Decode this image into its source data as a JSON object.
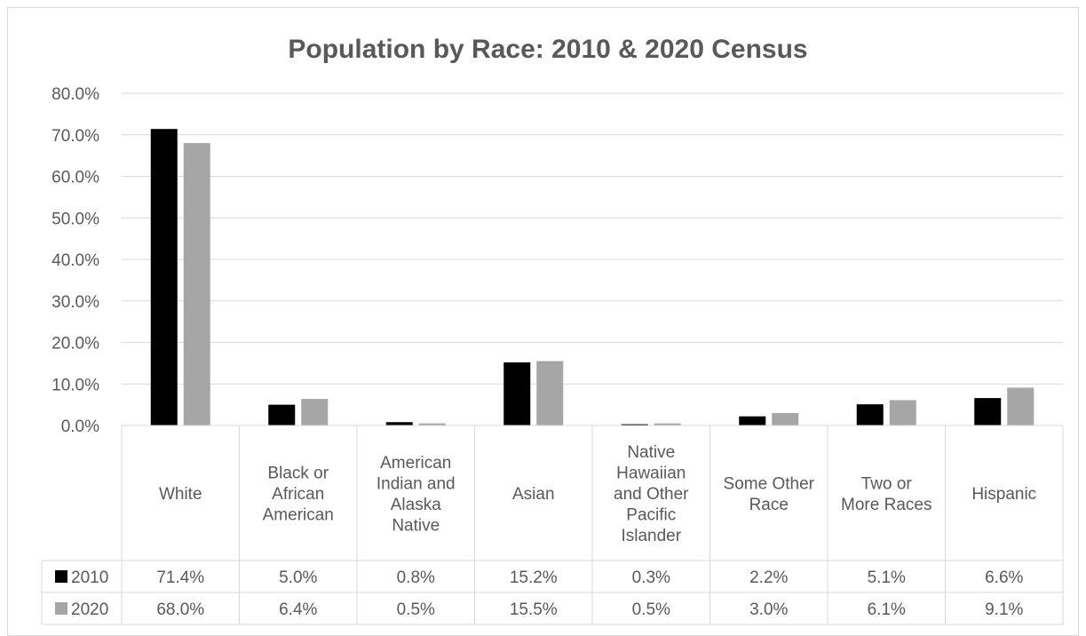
{
  "chart_data": {
    "type": "bar",
    "title": "Population by Race: 2010 & 2020 Census",
    "categories": [
      "White",
      "Black or African American",
      "American Indian and Alaska Native",
      "Asian",
      "Native Hawaiian and Other Pacific Islander",
      "Some Other Race",
      "Two or More Races",
      "Hispanic"
    ],
    "category_label_lines": [
      [
        "White"
      ],
      [
        "Black or",
        "African",
        "American"
      ],
      [
        "American",
        "Indian and",
        "Alaska",
        "Native"
      ],
      [
        "Asian"
      ],
      [
        "Native",
        "Hawaiian",
        "and Other",
        "Pacific",
        "Islander"
      ],
      [
        "Some Other",
        "Race"
      ],
      [
        "Two or",
        "More Races"
      ],
      [
        "Hispanic"
      ]
    ],
    "series": [
      {
        "name": "2010",
        "color": "#000000",
        "values": [
          71.4,
          5.0,
          0.8,
          15.2,
          0.3,
          2.2,
          5.1,
          6.6
        ],
        "value_labels": [
          "71.4%",
          "5.0%",
          "0.8%",
          "15.2%",
          "0.3%",
          "2.2%",
          "5.1%",
          "6.6%"
        ]
      },
      {
        "name": "2020",
        "color": "#a6a6a6",
        "values": [
          68.0,
          6.4,
          0.5,
          15.5,
          0.5,
          3.0,
          6.1,
          9.1
        ],
        "value_labels": [
          "68.0%",
          "6.4%",
          "0.5%",
          "15.5%",
          "0.5%",
          "3.0%",
          "6.1%",
          "9.1%"
        ]
      }
    ],
    "ylim": [
      0,
      80
    ],
    "yticks": [
      "0.0%",
      "10.0%",
      "20.0%",
      "30.0%",
      "40.0%",
      "50.0%",
      "60.0%",
      "70.0%",
      "80.0%"
    ],
    "grid": true,
    "legend": "data-table-keys",
    "xlabel": "",
    "ylabel": ""
  }
}
